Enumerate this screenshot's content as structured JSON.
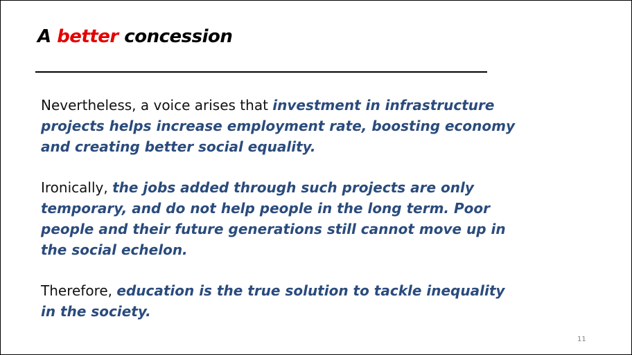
{
  "slide": {
    "title": {
      "prefix": "A ",
      "accent": "better",
      "suffix": " concession"
    },
    "paragraphs": [
      {
        "plain": "Nevertheless, a voice arises that ",
        "emphasis": "investment in infrastructure projects helps increase employment rate, boosting economy and creating better social equality."
      },
      {
        "plain": "Ironically, ",
        "emphasis": "the jobs added through such projects are only temporary, and do not help people in the long term. Poor people and their future generations still cannot move up in the social echelon."
      },
      {
        "plain": "Therefore, ",
        "emphasis": "education is the true solution to tackle inequality in the society."
      }
    ],
    "page_number": "11"
  },
  "colors": {
    "title_accent": "#e30000",
    "emphasis_text": "#2a4b7c",
    "plain_text": "#111111"
  }
}
